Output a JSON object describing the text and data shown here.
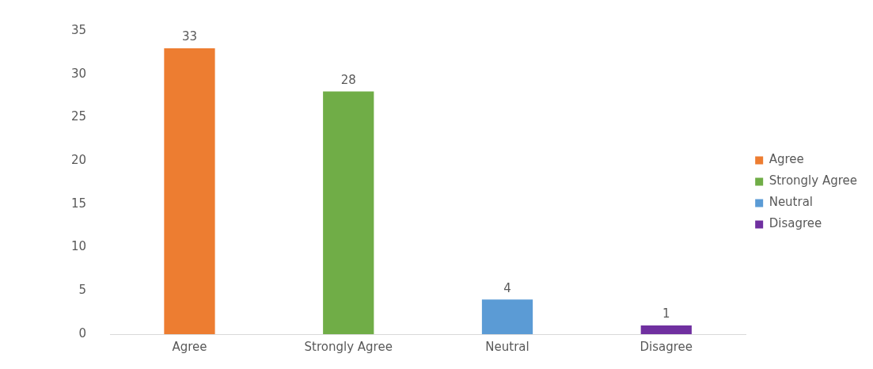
{
  "chart_data": {
    "type": "bar",
    "categories": [
      "Agree",
      "Strongly Agree",
      "Neutral",
      "Disagree"
    ],
    "series": [
      {
        "name": "Agree",
        "color": "#ed7d31",
        "values": [
          33,
          null,
          null,
          null
        ]
      },
      {
        "name": "Strongly Agree",
        "color": "#70ad47",
        "values": [
          null,
          28,
          null,
          null
        ]
      },
      {
        "name": "Neutral",
        "color": "#5b9bd5",
        "values": [
          null,
          null,
          4,
          null
        ]
      },
      {
        "name": "Disagree",
        "color": "#7030a0",
        "values": [
          null,
          null,
          null,
          1
        ]
      }
    ],
    "ylim": [
      0,
      35
    ],
    "yticks": [
      0,
      5,
      10,
      15,
      20,
      25,
      30,
      35
    ],
    "grid": false,
    "legend": "right",
    "data_labels": true
  }
}
